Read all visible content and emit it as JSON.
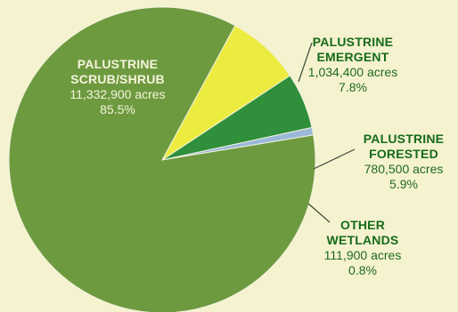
{
  "chart_data": {
    "type": "pie",
    "title": "",
    "slices": [
      {
        "label_lines": [
          "PALUSTRINE",
          "SCRUB/SHRUB"
        ],
        "acres": "11,332,900 acres",
        "percent_text": "85.5%",
        "value": 85.5,
        "color": "#6e9a3f"
      },
      {
        "label_lines": [
          "PALUSTRINE",
          "EMERGENT"
        ],
        "acres": "1,034,400 acres",
        "percent_text": "7.8%",
        "value": 7.8,
        "color": "#ecec40"
      },
      {
        "label_lines": [
          "PALUSTRINE",
          "FORESTED"
        ],
        "acres": "780,500 acres",
        "percent_text": "5.9%",
        "value": 5.9,
        "color": "#2f8f3b"
      },
      {
        "label_lines": [
          "OTHER",
          "WETLANDS"
        ],
        "acres": "111,900 acres",
        "percent_text": "0.8%",
        "value": 0.8,
        "color": "#9ab8d8"
      }
    ]
  }
}
